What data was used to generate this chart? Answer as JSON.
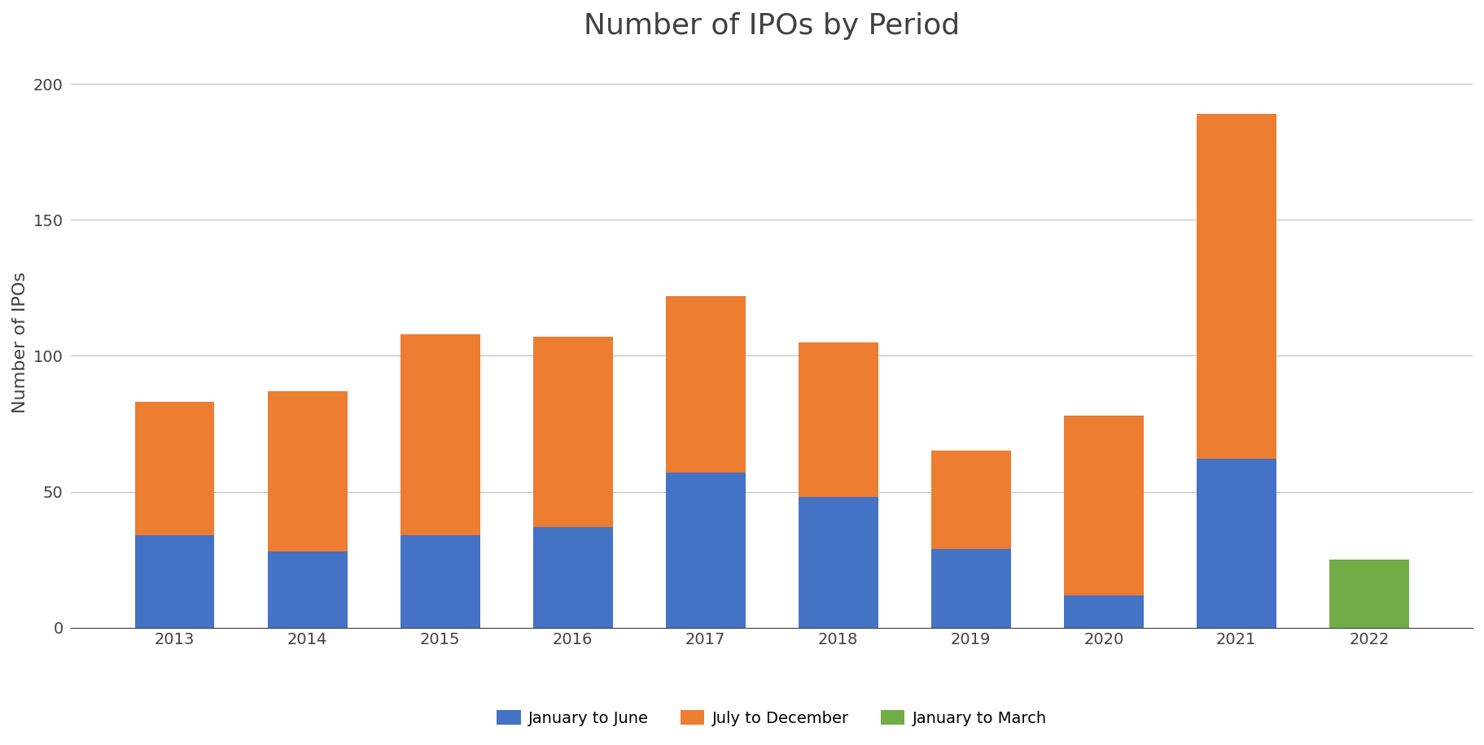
{
  "title": "Number of IPOs by Period",
  "ylabel": "Number of IPOs",
  "years": [
    "2013",
    "2014",
    "2015",
    "2016",
    "2017",
    "2018",
    "2019",
    "2020",
    "2021",
    "2022"
  ],
  "jan_to_june": [
    34,
    28,
    34,
    37,
    57,
    48,
    29,
    12,
    62,
    0
  ],
  "july_to_dec": [
    49,
    59,
    74,
    70,
    65,
    57,
    36,
    66,
    127,
    0
  ],
  "jan_to_march": [
    0,
    0,
    0,
    0,
    0,
    0,
    0,
    0,
    0,
    25
  ],
  "color_blue": "#4472C4",
  "color_orange": "#ED7D31",
  "color_green": "#70AD47",
  "background_color": "#FFFFFF",
  "ylim": [
    0,
    210
  ],
  "yticks": [
    0,
    50,
    100,
    150,
    200
  ],
  "legend_labels": [
    "January to June",
    "July to December",
    "January to March"
  ],
  "title_fontsize": 26,
  "axis_fontsize": 16,
  "tick_fontsize": 14,
  "legend_fontsize": 14
}
